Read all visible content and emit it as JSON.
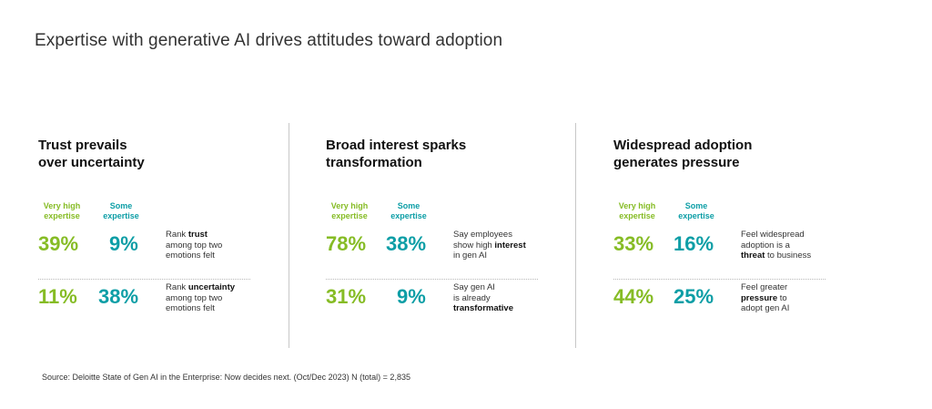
{
  "title": "Expertise with generative AI drives attitudes toward adoption",
  "legend": {
    "very_high": [
      "Very high",
      "expertise"
    ],
    "some": [
      "Some",
      "expertise"
    ]
  },
  "colors": {
    "very_high": "#86bc25",
    "some": "#0d9ea6"
  },
  "panels": [
    {
      "heading": [
        "Trust prevails",
        "over uncertainty"
      ],
      "rows": [
        {
          "very_high": "39%",
          "some": "9%",
          "note": [
            {
              "t": "Rank ",
              "b": false
            },
            {
              "t": "trust",
              "b": true
            },
            {
              "br": true
            },
            {
              "t": "among top two",
              "b": false
            },
            {
              "br": true
            },
            {
              "t": "emotions felt",
              "b": false
            }
          ]
        },
        {
          "very_high": "11%",
          "some": "38%",
          "note": [
            {
              "t": "Rank ",
              "b": false
            },
            {
              "t": "uncertainty",
              "b": true
            },
            {
              "br": true
            },
            {
              "t": "among top two",
              "b": false
            },
            {
              "br": true
            },
            {
              "t": "emotions felt",
              "b": false
            }
          ]
        }
      ]
    },
    {
      "heading": [
        "Broad interest sparks",
        "transformation"
      ],
      "rows": [
        {
          "very_high": "78%",
          "some": "38%",
          "note": [
            {
              "t": "Say employees",
              "b": false
            },
            {
              "br": true
            },
            {
              "t": "show high ",
              "b": false
            },
            {
              "t": "interest",
              "b": true
            },
            {
              "br": true
            },
            {
              "t": "in gen AI",
              "b": false
            }
          ]
        },
        {
          "very_high": "31%",
          "some": "9%",
          "note": [
            {
              "t": "Say gen AI",
              "b": false
            },
            {
              "br": true
            },
            {
              "t": "is already",
              "b": false
            },
            {
              "br": true
            },
            {
              "t": "transformative",
              "b": true
            }
          ]
        }
      ]
    },
    {
      "heading": [
        "Widespread adoption",
        "generates pressure"
      ],
      "rows": [
        {
          "very_high": "33%",
          "some": "16%",
          "note": [
            {
              "t": "Feel widespread",
              "b": false
            },
            {
              "br": true
            },
            {
              "t": "adoption is a",
              "b": false
            },
            {
              "br": true
            },
            {
              "t": "threat",
              "b": true
            },
            {
              "t": " to business",
              "b": false
            }
          ]
        },
        {
          "very_high": "44%",
          "some": "25%",
          "note": [
            {
              "t": "Feel  greater",
              "b": false
            },
            {
              "br": true
            },
            {
              "t": "pressure",
              "b": true
            },
            {
              "t": " to",
              "b": false
            },
            {
              "br": true
            },
            {
              "t": "adopt gen AI",
              "b": false
            }
          ]
        }
      ]
    }
  ],
  "source": "Source: Deloitte State of Gen AI in the Enterprise: Now decides next. (Oct/Dec 2023) N (total) = 2,835",
  "chart_data": {
    "type": "table",
    "title": "Expertise with generative AI drives attitudes toward adoption",
    "series": [
      {
        "name": "Very high expertise"
      },
      {
        "name": "Some expertise"
      }
    ],
    "rows": [
      {
        "group": "Trust prevails over uncertainty",
        "metric": "Rank trust among top two emotions felt",
        "very_high": 39,
        "some": 9
      },
      {
        "group": "Trust prevails over uncertainty",
        "metric": "Rank uncertainty among top two emotions felt",
        "very_high": 11,
        "some": 38
      },
      {
        "group": "Broad interest sparks transformation",
        "metric": "Say employees show high interest in gen AI",
        "very_high": 78,
        "some": 38
      },
      {
        "group": "Broad interest sparks transformation",
        "metric": "Say gen AI is already transformative",
        "very_high": 31,
        "some": 9
      },
      {
        "group": "Widespread adoption generates pressure",
        "metric": "Feel widespread adoption is a threat to business",
        "very_high": 33,
        "some": 16
      },
      {
        "group": "Widespread adoption generates pressure",
        "metric": "Feel greater pressure to adopt gen AI",
        "very_high": 44,
        "some": 25
      }
    ],
    "unit": "%"
  }
}
